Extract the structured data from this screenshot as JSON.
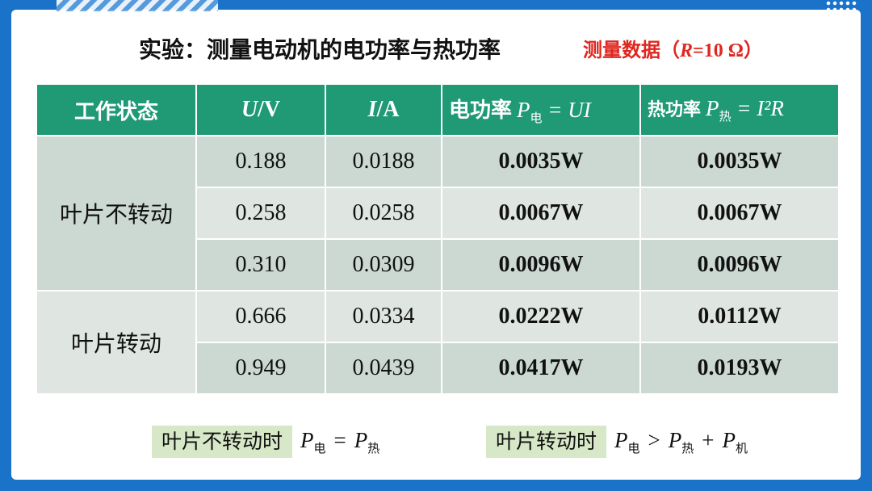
{
  "title": "实验：测量电动机的电功率与热功率",
  "subtitle": {
    "prefix": "测量数据（",
    "var": "R",
    "rest": "=10 Ω",
    "suffix": "）"
  },
  "table": {
    "headers": {
      "state": "工作状态",
      "u_var": "U",
      "u_unit": "/V",
      "i_var": "I",
      "i_unit": "/A",
      "pe_label": "电功率",
      "pe_p": "P",
      "pe_sub": "电",
      "pe_rhs": "= UI",
      "pr_label": "热功率",
      "pr_p": "P",
      "pr_sub": "热",
      "pr_rhs": "= I²R"
    },
    "groups": [
      {
        "state": "叶片不转动",
        "rows": [
          {
            "u": "0.188",
            "i": "0.0188",
            "pe": "0.0035W",
            "pr": "0.0035W"
          },
          {
            "u": "0.258",
            "i": "0.0258",
            "pe": "0.0067W",
            "pr": "0.0067W"
          },
          {
            "u": "0.310",
            "i": "0.0309",
            "pe": "0.0096W",
            "pr": "0.0096W"
          }
        ]
      },
      {
        "state": "叶片转动",
        "rows": [
          {
            "u": "0.666",
            "i": "0.0334",
            "pe": "0.0222W",
            "pr": "0.0112W"
          },
          {
            "u": "0.949",
            "i": "0.0439",
            "pe": "0.0417W",
            "pr": "0.0193W"
          }
        ]
      }
    ]
  },
  "conclusions": [
    {
      "label": "叶片不转动时",
      "p1": "P",
      "s1": "电",
      "op1": "=",
      "p2": "P",
      "s2": "热"
    },
    {
      "label": "叶片转动时",
      "p1": "P",
      "s1": "电",
      "op1": ">",
      "p2": "P",
      "s2": "热",
      "op2": "+",
      "p3": "P",
      "s3": "机"
    }
  ]
}
